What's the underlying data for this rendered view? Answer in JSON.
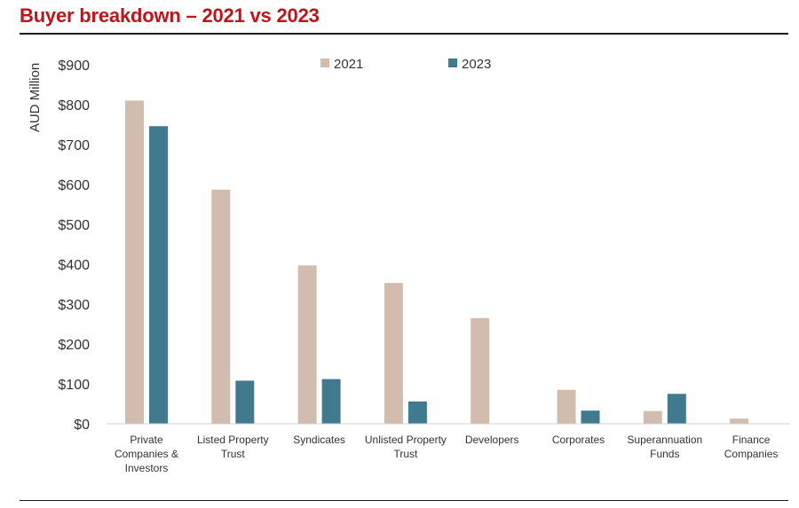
{
  "header": {
    "title": "Buyer breakdown – 2021 vs 2023"
  },
  "chart_data": {
    "type": "bar",
    "title": "Buyer breakdown – 2021 vs 2023",
    "xlabel": "",
    "ylabel": "AUD Million",
    "ylim": [
      0,
      900
    ],
    "yticks": [
      0,
      100,
      200,
      300,
      400,
      500,
      600,
      700,
      800,
      900
    ],
    "ytick_labels": [
      "$0",
      "$100",
      "$200",
      "$300",
      "$400",
      "$500",
      "$600",
      "$700",
      "$800",
      "$900"
    ],
    "categories": [
      [
        "Private",
        "Companies &",
        "Investors"
      ],
      [
        "Listed Property",
        "Trust"
      ],
      [
        "Syndicates"
      ],
      [
        "Unlisted Property",
        "Trust"
      ],
      [
        "Developers"
      ],
      [
        "Corporates"
      ],
      [
        "Superannuation",
        "Funds"
      ],
      [
        "Finance",
        "Companies"
      ]
    ],
    "series": [
      {
        "name": "2021",
        "color": "#d2bcad",
        "values": [
          810,
          587,
          397,
          353,
          265,
          85,
          32,
          13
        ]
      },
      {
        "name": "2023",
        "color": "#417a8e",
        "values": [
          746,
          108,
          112,
          56,
          0,
          33,
          75,
          0
        ]
      }
    ],
    "legend_position": "top-center",
    "grid": false
  }
}
